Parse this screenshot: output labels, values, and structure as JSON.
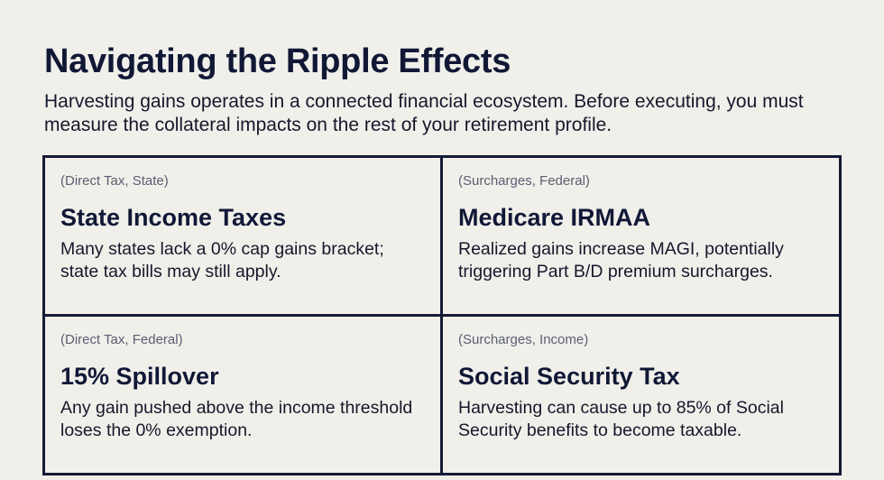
{
  "header": {
    "title": "Navigating the Ripple Effects",
    "subtitle": "Harvesting gains operates in a connected financial ecosystem. Before executing, you must measure the collateral impacts on the rest of your retirement profile."
  },
  "cards": [
    {
      "tag": "(Direct Tax, State)",
      "heading": "State Income Taxes",
      "description": "Many states lack a 0% cap gains bracket; state tax bills may still apply."
    },
    {
      "tag": "(Surcharges, Federal)",
      "heading": "Medicare IRMAA",
      "description": "Realized gains increase MAGI, potentially triggering Part B/D premium surcharges."
    },
    {
      "tag": "(Direct Tax, Federal)",
      "heading": "15% Spillover",
      "description": "Any gain pushed above the income threshold loses the 0% exemption."
    },
    {
      "tag": "(Surcharges, Income)",
      "heading": "Social Security Tax",
      "description": "Harvesting can cause up to 85% of Social Security benefits to become taxable."
    }
  ],
  "colors": {
    "background": "#f0efea",
    "heading": "#111836",
    "border": "#151a36",
    "tag": "#5a5f72",
    "body_text": "#15182b"
  }
}
